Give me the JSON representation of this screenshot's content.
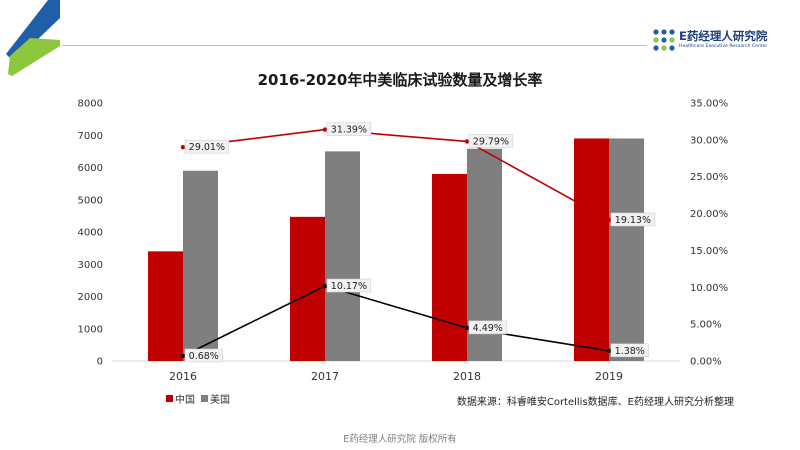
{
  "brand": {
    "name": "E药经理人研究院",
    "subtitle": "Healthcare Executive Research Center"
  },
  "chart_data": {
    "type": "bar",
    "title": "2016-2020年中美临床试验数量及增长率",
    "categories": [
      "2016",
      "2017",
      "2018",
      "2019"
    ],
    "series": [
      {
        "name": "中国",
        "kind": "bar",
        "axis": "left",
        "color": "#c00000",
        "values": [
          3400,
          4470,
          5800,
          6900
        ]
      },
      {
        "name": "美国",
        "kind": "bar",
        "axis": "left",
        "color": "#7f7f7f",
        "values": [
          5900,
          6500,
          6580,
          6900
        ]
      },
      {
        "kind": "line",
        "axis": "right",
        "color": "#c00000",
        "values": [
          29.01,
          31.39,
          29.79,
          19.13
        ],
        "labels": [
          "29.01%",
          "31.39%",
          "29.79%",
          "19.13%"
        ]
      },
      {
        "kind": "line",
        "axis": "right",
        "color": "#000000",
        "values": [
          0.68,
          10.17,
          4.49,
          1.38
        ],
        "labels": [
          "0.68%",
          "10.17%",
          "4.49%",
          "1.38%"
        ]
      }
    ],
    "y_left": {
      "min": 0,
      "max": 8000,
      "ticks": [
        "0",
        "1000",
        "2000",
        "3000",
        "4000",
        "5000",
        "6000",
        "7000",
        "8000"
      ]
    },
    "y_right": {
      "min": 0,
      "max": 35,
      "ticks": [
        "0.00%",
        "5.00%",
        "10.00%",
        "15.00%",
        "20.00%",
        "25.00%",
        "30.00%",
        "35.00%"
      ]
    },
    "grid": false,
    "legend_position": "bottom-left"
  },
  "source_note": "数据来源：科睿唯安Cortellis数据库、E药经理人研究分析整理",
  "footer": "E药经理人研究院  版权所有"
}
